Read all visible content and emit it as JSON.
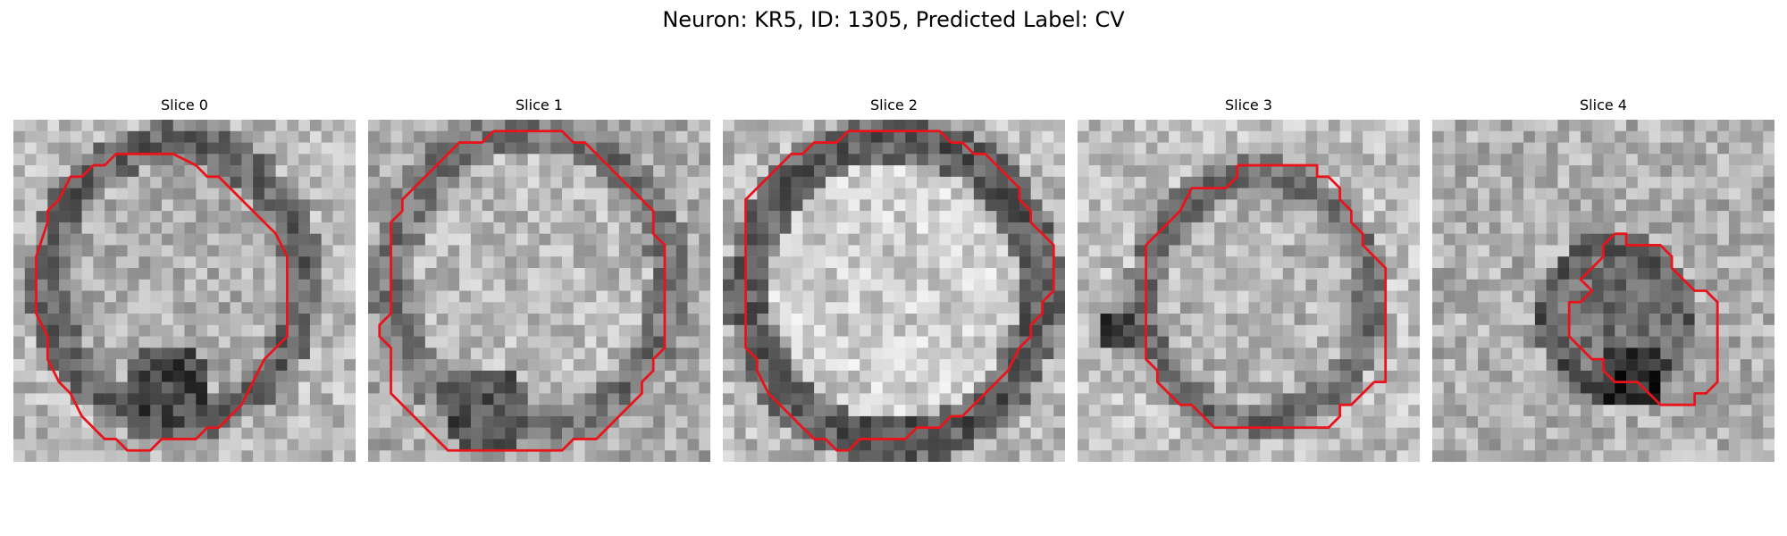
{
  "figure": {
    "title": "Neuron: KR5, ID: 1305, Predicted Label: CV",
    "contour_color": "#e8141c"
  },
  "panels": [
    {
      "label": "Slice 0"
    },
    {
      "label": "Slice 1"
    },
    {
      "label": "Slice 2"
    },
    {
      "label": "Slice 3"
    },
    {
      "label": "Slice 4"
    }
  ]
}
